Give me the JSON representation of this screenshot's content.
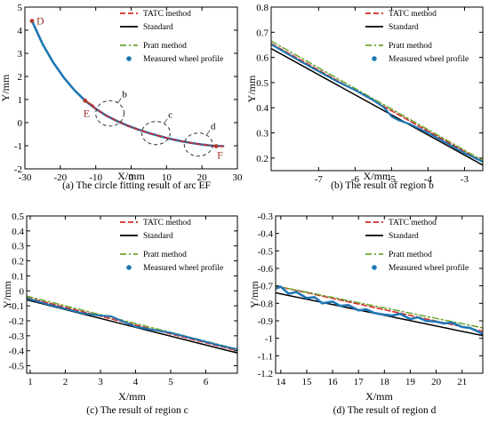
{
  "chart_data": [
    {
      "id": "a",
      "type": "line",
      "caption": "(a) The circle fitting result of arc EF",
      "xlabel": "X/mm",
      "ylabel": "Y/mm",
      "xlim": [
        -30,
        30
      ],
      "ylim": [
        -2,
        5
      ],
      "xticks": [
        -30,
        -20,
        -10,
        0,
        10,
        20,
        30
      ],
      "xtick_labels": [
        "-30",
        "-20",
        "-10",
        "0",
        "10",
        "20",
        "30"
      ],
      "yticks": [
        -2,
        -1,
        0,
        1,
        2,
        3,
        4,
        5
      ],
      "ytick_labels": [
        "-2",
        "-1",
        "0",
        "1",
        "2",
        "3",
        "4",
        "5"
      ],
      "grid": false,
      "series": [
        {
          "name": "Measured wheel profile",
          "color": "#1f77b4",
          "style": "solid-thick",
          "x": [
            -28,
            -25,
            -22,
            -19,
            -16,
            -13,
            -10,
            -7,
            -4,
            -1,
            2,
            5,
            8,
            11,
            14,
            17,
            20,
            23,
            26
          ],
          "y": [
            4.4,
            3.4,
            2.6,
            1.95,
            1.4,
            0.95,
            0.6,
            0.3,
            0.07,
            -0.13,
            -0.3,
            -0.45,
            -0.58,
            -0.7,
            -0.8,
            -0.88,
            -0.95,
            -1.0,
            -1.02
          ]
        },
        {
          "name": "TATC method",
          "color": "#d62728",
          "style": "dash",
          "x": [
            -13,
            -10,
            -7,
            -4,
            -1,
            2,
            5,
            8,
            11,
            14,
            17,
            20,
            23,
            26
          ],
          "y": [
            0.95,
            0.6,
            0.3,
            0.07,
            -0.13,
            -0.3,
            -0.45,
            -0.58,
            -0.7,
            -0.8,
            -0.88,
            -0.95,
            -1.0,
            -1.03
          ]
        }
      ],
      "points": [
        {
          "label": "D",
          "x": -28,
          "y": 4.4
        },
        {
          "label": "E",
          "x": -13,
          "y": 0.95
        },
        {
          "label": "F",
          "x": 24,
          "y": -1.02
        }
      ],
      "regions": [
        {
          "label": "b",
          "cx": -6,
          "cy": 0.4,
          "rx": 4,
          "ry": 0.55
        },
        {
          "label": "c",
          "cx": 7,
          "cy": -0.45,
          "rx": 4,
          "ry": 0.5
        },
        {
          "label": "d",
          "cx": 19,
          "cy": -0.95,
          "rx": 4,
          "ry": 0.5
        }
      ]
    },
    {
      "id": "b",
      "type": "line",
      "caption": "(b) The result of region b",
      "xlabel": "X/mm",
      "ylabel": "Y/mm",
      "xlim": [
        -8.3,
        -2.5
      ],
      "ylim": [
        0.15,
        0.8
      ],
      "xticks": [
        -7,
        -6,
        -5,
        -4,
        -3
      ],
      "xtick_labels": [
        "-7",
        "-6",
        "-5",
        "-4",
        "-3"
      ],
      "yticks": [
        0.2,
        0.3,
        0.4,
        0.5,
        0.6,
        0.7,
        0.8
      ],
      "ytick_labels": [
        "0.2",
        "0.3",
        "0.4",
        "0.5",
        "0.6",
        "0.7",
        "0.8"
      ],
      "grid": false,
      "legend": [
        "TATC method",
        "Standard",
        "Pratt method",
        "Measured wheel profile"
      ],
      "legend_position": "top-right",
      "series": [
        {
          "name": "TATC method",
          "color": "#d62728",
          "style": "dash",
          "x": [
            -8.3,
            -2.5
          ],
          "y": [
            0.655,
            0.185
          ]
        },
        {
          "name": "Standard",
          "color": "#000000",
          "style": "solid",
          "x": [
            -8.3,
            -2.5
          ],
          "y": [
            0.635,
            0.172
          ]
        },
        {
          "name": "Pratt method",
          "color": "#6aa62e",
          "style": "dashdot",
          "x": [
            -8.3,
            -2.5
          ],
          "y": [
            0.665,
            0.19
          ]
        },
        {
          "name": "Measured wheel profile",
          "color": "#1f77b4",
          "style": "dotted",
          "x": [
            -8.3,
            -7.5,
            -7.0,
            -6.5,
            -6.0,
            -5.5,
            -5.2,
            -5.0,
            -4.8,
            -4.5,
            -4.0,
            -3.5,
            -3.0,
            -2.5
          ],
          "y": [
            0.652,
            0.585,
            0.545,
            0.505,
            0.47,
            0.43,
            0.4,
            0.365,
            0.35,
            0.335,
            0.3,
            0.26,
            0.22,
            0.185
          ]
        }
      ]
    },
    {
      "id": "c",
      "type": "line",
      "caption": "(c) The result of region c",
      "xlabel": "X/mm",
      "ylabel": "Y/mm",
      "xlim": [
        0.9,
        6.9
      ],
      "ylim": [
        -0.55,
        0.5
      ],
      "xticks": [
        1,
        2,
        3,
        4,
        5,
        6
      ],
      "xtick_labels": [
        "1",
        "2",
        "3",
        "4",
        "5",
        "6"
      ],
      "yticks": [
        -0.5,
        -0.4,
        -0.3,
        -0.2,
        -0.1,
        0,
        0.1,
        0.2,
        0.3,
        0.4,
        0.5
      ],
      "ytick_labels": [
        "-0.5",
        "-0.4",
        "-0.3",
        "-0.2",
        "-0.1",
        "0",
        "0.1",
        "0.2",
        "0.3",
        "0.4",
        "0.5"
      ],
      "grid": false,
      "legend": [
        "TATC method",
        "Standard",
        "Pratt method",
        "Measured wheel profile"
      ],
      "legend_position": "top-right",
      "series": [
        {
          "name": "TATC method",
          "color": "#d62728",
          "style": "dash",
          "x": [
            0.9,
            6.9
          ],
          "y": [
            -0.045,
            -0.4
          ]
        },
        {
          "name": "Standard",
          "color": "#000000",
          "style": "solid",
          "x": [
            0.9,
            6.9
          ],
          "y": [
            -0.06,
            -0.415
          ]
        },
        {
          "name": "Pratt method",
          "color": "#6aa62e",
          "style": "dashdot",
          "x": [
            0.9,
            6.9
          ],
          "y": [
            -0.035,
            -0.39
          ]
        },
        {
          "name": "Measured wheel profile",
          "color": "#1f77b4",
          "style": "dotted",
          "x": [
            0.9,
            1.5,
            2.0,
            2.5,
            3.0,
            3.3,
            3.6,
            4.0,
            4.5,
            5.0,
            5.5,
            6.0,
            6.5,
            6.9
          ],
          "y": [
            -0.05,
            -0.09,
            -0.12,
            -0.15,
            -0.165,
            -0.17,
            -0.2,
            -0.24,
            -0.26,
            -0.28,
            -0.31,
            -0.34,
            -0.37,
            -0.39
          ]
        }
      ]
    },
    {
      "id": "d",
      "type": "line",
      "caption": "(d) The result of region d",
      "xlabel": "X/mm",
      "ylabel": "Y/mm",
      "xlim": [
        13.8,
        21.8
      ],
      "ylim": [
        -1.2,
        -0.3
      ],
      "xticks": [
        14,
        15,
        16,
        17,
        18,
        19,
        20,
        21
      ],
      "xtick_labels": [
        "14",
        "15",
        "16",
        "17",
        "18",
        "19",
        "20",
        "21"
      ],
      "yticks": [
        -1.2,
        -1.1,
        -1,
        -0.9,
        -0.8,
        -0.7,
        -0.6,
        -0.5,
        -0.4,
        -0.3
      ],
      "ytick_labels": [
        "-1.2",
        "-1.1",
        "-1",
        "-0.9",
        "-0.8",
        "-0.7",
        "-0.6",
        "-0.5",
        "-0.4",
        "-0.3"
      ],
      "grid": false,
      "legend": [
        "TATC method",
        "Standard",
        "Pratt method",
        "Measured wheel profile"
      ],
      "legend_position": "top-right",
      "series": [
        {
          "name": "TATC method",
          "color": "#d62728",
          "style": "dash",
          "x": [
            13.8,
            21.8
          ],
          "y": [
            -0.7,
            -0.96
          ]
        },
        {
          "name": "Standard",
          "color": "#000000",
          "style": "solid",
          "x": [
            13.8,
            21.8
          ],
          "y": [
            -0.74,
            -0.985
          ]
        },
        {
          "name": "Pratt method",
          "color": "#6aa62e",
          "style": "dashdot",
          "x": [
            13.8,
            21.8
          ],
          "y": [
            -0.7,
            -0.94
          ]
        },
        {
          "name": "Measured wheel profile",
          "color": "#1f77b4",
          "style": "solid-thick",
          "x": [
            13.8,
            14.0,
            14.3,
            14.6,
            15.0,
            15.3,
            15.6,
            16.0,
            16.3,
            16.6,
            17.0,
            17.3,
            17.6,
            18.0,
            18.3,
            18.6,
            19.0,
            19.3,
            19.6,
            20.0,
            20.3,
            20.6,
            21.0,
            21.3,
            21.6,
            21.8
          ],
          "y": [
            -0.715,
            -0.705,
            -0.745,
            -0.735,
            -0.77,
            -0.765,
            -0.8,
            -0.79,
            -0.815,
            -0.81,
            -0.84,
            -0.835,
            -0.855,
            -0.865,
            -0.87,
            -0.86,
            -0.89,
            -0.88,
            -0.9,
            -0.905,
            -0.915,
            -0.91,
            -0.935,
            -0.94,
            -0.96,
            -0.975
          ]
        }
      ]
    }
  ]
}
